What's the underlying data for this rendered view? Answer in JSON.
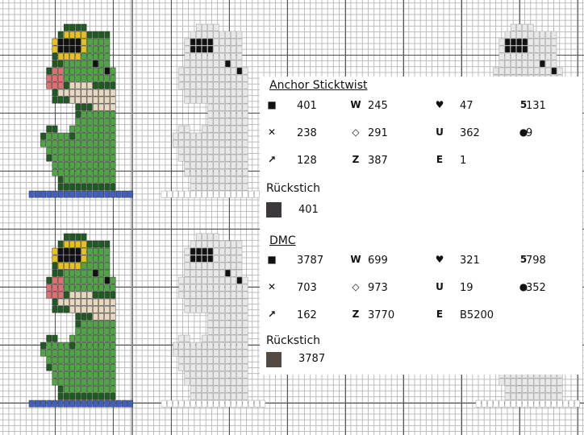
{
  "legend": [
    {
      "title": "Anchor Sticktwist",
      "items": [
        {
          "symbol": "■",
          "number": "401"
        },
        {
          "symbol": "W",
          "number": "245"
        },
        {
          "symbol": "♥",
          "number": "47"
        },
        {
          "symbol": "5",
          "number": "131"
        },
        {
          "symbol": "✕",
          "number": "238"
        },
        {
          "symbol": "◇",
          "number": "291"
        },
        {
          "symbol": "U",
          "number": "362"
        },
        {
          "symbol": "●",
          "number": "9"
        },
        {
          "symbol": "↗",
          "number": "128"
        },
        {
          "symbol": "Z",
          "number": "387"
        },
        {
          "symbol": "E",
          "number": "1"
        }
      ],
      "backstitch_label": "Rückstich",
      "backstitch_number": "401",
      "backstitch_color": "#3d383c"
    },
    {
      "title": "DMC",
      "items": [
        {
          "symbol": "■",
          "number": "3787"
        },
        {
          "symbol": "W",
          "number": "699"
        },
        {
          "symbol": "♥",
          "number": "321"
        },
        {
          "symbol": "5",
          "number": "798"
        },
        {
          "symbol": "✕",
          "number": "703"
        },
        {
          "symbol": "◇",
          "number": "973"
        },
        {
          "symbol": "U",
          "number": "19"
        },
        {
          "symbol": "●",
          "number": "352"
        },
        {
          "symbol": "↗",
          "number": "162"
        },
        {
          "symbol": "Z",
          "number": "3770"
        },
        {
          "symbol": "E",
          "number": "B5200"
        }
      ],
      "backstitch_label": "Rückstich",
      "backstitch_number": "3787",
      "backstitch_color": "#524a43"
    }
  ],
  "colors": {
    "dark_green": "#1e5a22",
    "light_green": "#4fa544",
    "yellow": "#e8c21a",
    "pink": "#e07070",
    "tan": "#e8d8c0",
    "blue": "#4060c0",
    "black": "#111111"
  }
}
